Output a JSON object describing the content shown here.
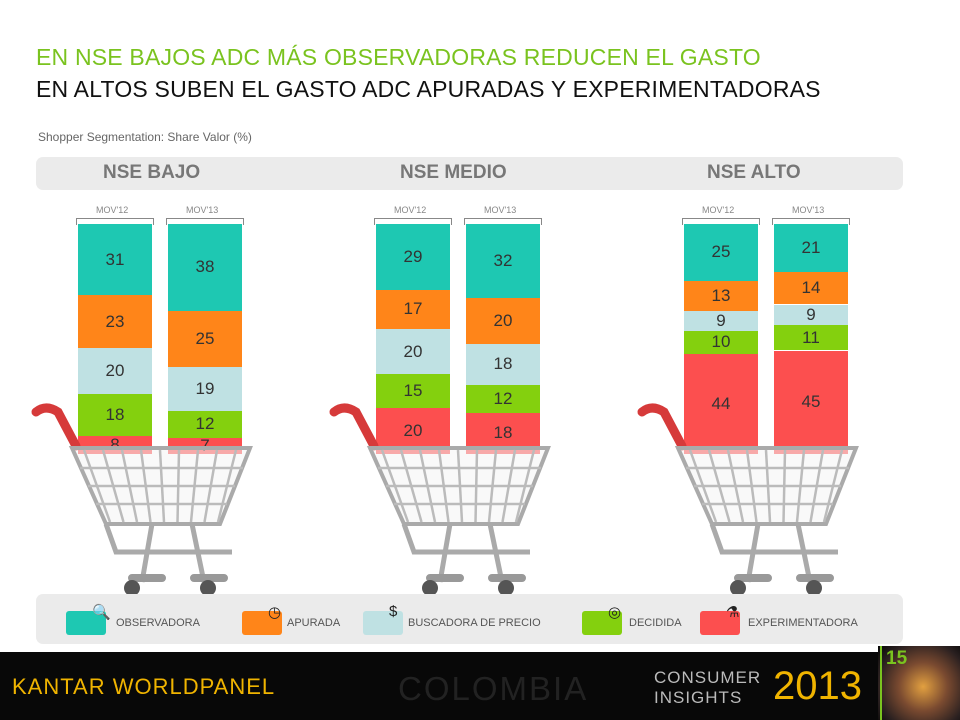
{
  "title_line1": "EN NSE BAJOS ADC MÁS OBSERVADORAS REDUCEN EL GASTO",
  "title_line2": "EN ALTOS SUBEN EL GASTO ADC APURADAS Y EXPERIMENTADORAS",
  "subtitle": "Shopper Segmentation: Share Valor (%)",
  "colors": {
    "observadora": "#1ec8b2",
    "apurada": "#ff8519",
    "buscadora": "#bfe1e3",
    "decidida": "#84d00e",
    "experimentadora": "#fc4f4f",
    "accent_green": "#7ac31f",
    "footer_gold": "#f0b400"
  },
  "chart_data": {
    "type": "bar",
    "stacked": true,
    "groups": [
      "NSE BAJO",
      "NSE MEDIO",
      "NSE ALTO"
    ],
    "categories": [
      "MOV'12",
      "MOV'13"
    ],
    "series": [
      {
        "name": "OBSERVADORA",
        "key": "observadora"
      },
      {
        "name": "APURADA",
        "key": "apurada"
      },
      {
        "name": "BUSCADORA DE PRECIO",
        "key": "buscadora"
      },
      {
        "name": "DECIDIDA",
        "key": "decidida"
      },
      {
        "name": "EXPERIMENTADORA",
        "key": "experimentadora"
      }
    ],
    "values": {
      "NSE BAJO": {
        "MOV'12": [
          31,
          23,
          20,
          18,
          8
        ],
        "MOV'13": [
          38,
          25,
          19,
          12,
          7
        ]
      },
      "NSE MEDIO": {
        "MOV'12": [
          29,
          17,
          20,
          15,
          20
        ],
        "MOV'13": [
          32,
          20,
          18,
          12,
          18
        ]
      },
      "NSE ALTO": {
        "MOV'12": [
          25,
          13,
          9,
          10,
          44
        ],
        "MOV'13": [
          21,
          14,
          9,
          11,
          45
        ]
      }
    },
    "legend_position": "bottom"
  },
  "legend": [
    {
      "label": "OBSERVADORA",
      "key": "observadora",
      "icon": "magnifier-icon",
      "glyph": "🔍"
    },
    {
      "label": "APURADA",
      "key": "apurada",
      "icon": "clock-icon",
      "glyph": "◷"
    },
    {
      "label": "BUSCADORA DE PRECIO",
      "key": "buscadora",
      "icon": "dollar-icon",
      "glyph": "$"
    },
    {
      "label": "DECIDIDA",
      "key": "decidida",
      "icon": "target-icon",
      "glyph": "◎"
    },
    {
      "label": "EXPERIMENTADORA",
      "key": "experimentadora",
      "icon": "flask-icon",
      "glyph": "⚗"
    }
  ],
  "footer": {
    "brand": "KANTAR WORLDPANEL",
    "country": "COLOMBIA",
    "consumer_insights": "CONSUMER\nINSIGHTS",
    "year": "2013",
    "page_number": "15"
  }
}
